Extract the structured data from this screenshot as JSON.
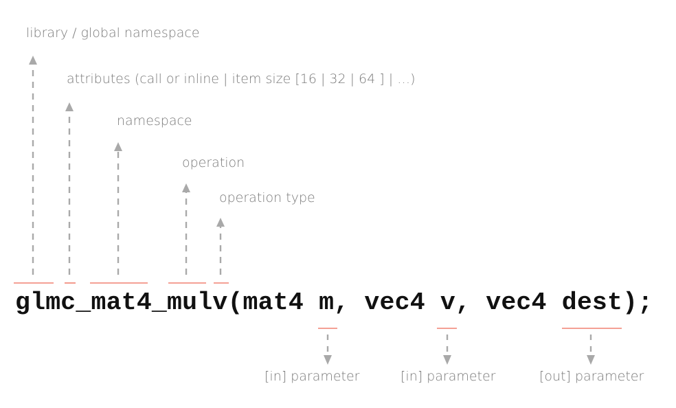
{
  "code": "glmc_mat4_mulv(mat4 m, vec4 v, vec4 dest);",
  "colors": {
    "underline": "#f08070",
    "arrow": "#a9a9a9",
    "label": "#7a7a7a",
    "code": "#111111"
  },
  "annotations_up": [
    {
      "label": "library / global namespace",
      "part": "glmc"
    },
    {
      "label": "attributes (call or inline | item size [16 | 32 | 64 ] | …)",
      "part": "_"
    },
    {
      "label": "namespace",
      "part": "mat4"
    },
    {
      "label": "operation",
      "part": "mul"
    },
    {
      "label": "operation type",
      "part": "v"
    }
  ],
  "annotations_down": [
    {
      "label": "[in] parameter",
      "part": "m"
    },
    {
      "label": "[in] parameter",
      "part": "v"
    },
    {
      "label": "[out] parameter",
      "part": "dest"
    }
  ]
}
